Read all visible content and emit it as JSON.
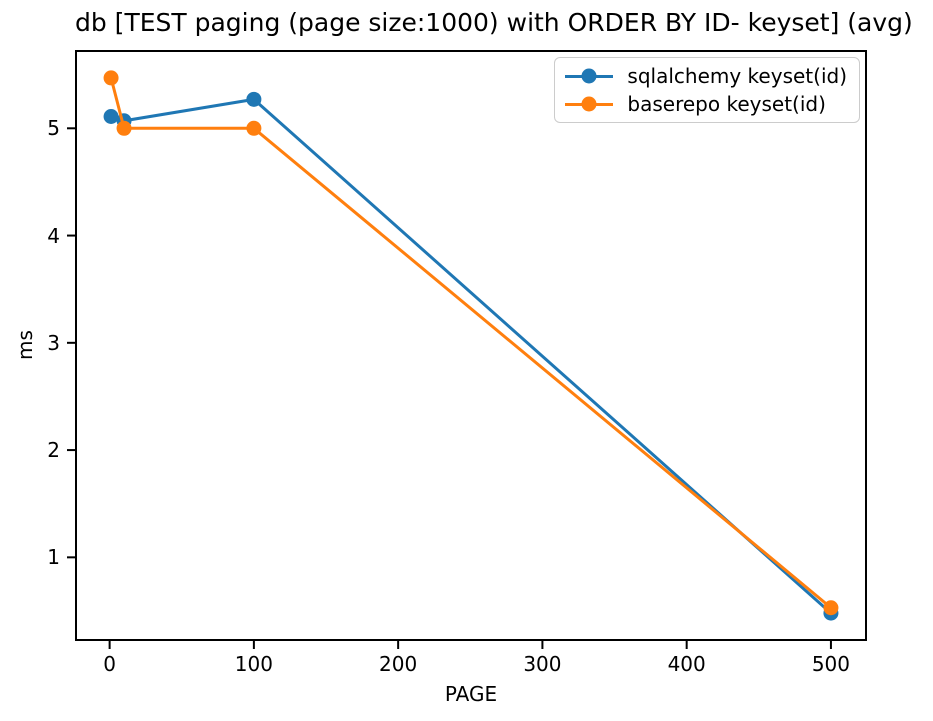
{
  "chart_data": {
    "type": "line",
    "title": "db [TEST paging (page size:1000) with ORDER BY ID- keyset] (avg)",
    "xlabel": "PAGE",
    "ylabel": "ms",
    "x": [
      1,
      10,
      100,
      500
    ],
    "series": [
      {
        "name": "sqlalchemy keyset(id)",
        "color": "#1f77b4",
        "values": [
          5.11,
          5.07,
          5.27,
          0.48
        ]
      },
      {
        "name": "baserepo keyset(id)",
        "color": "#ff7f0e",
        "values": [
          5.47,
          5.0,
          5.0,
          0.53
        ]
      }
    ],
    "xticks": [
      0,
      100,
      200,
      300,
      400,
      500
    ],
    "yticks": [
      1,
      2,
      3,
      4,
      5
    ],
    "xlim": [
      -24,
      525
    ],
    "ylim": [
      0.22,
      5.73
    ],
    "grid": false,
    "legend_position": "upper right",
    "marker": "o",
    "line_width": 3,
    "marker_radius": 7.5,
    "axis_color": "#000000",
    "background_color": "#ffffff"
  }
}
